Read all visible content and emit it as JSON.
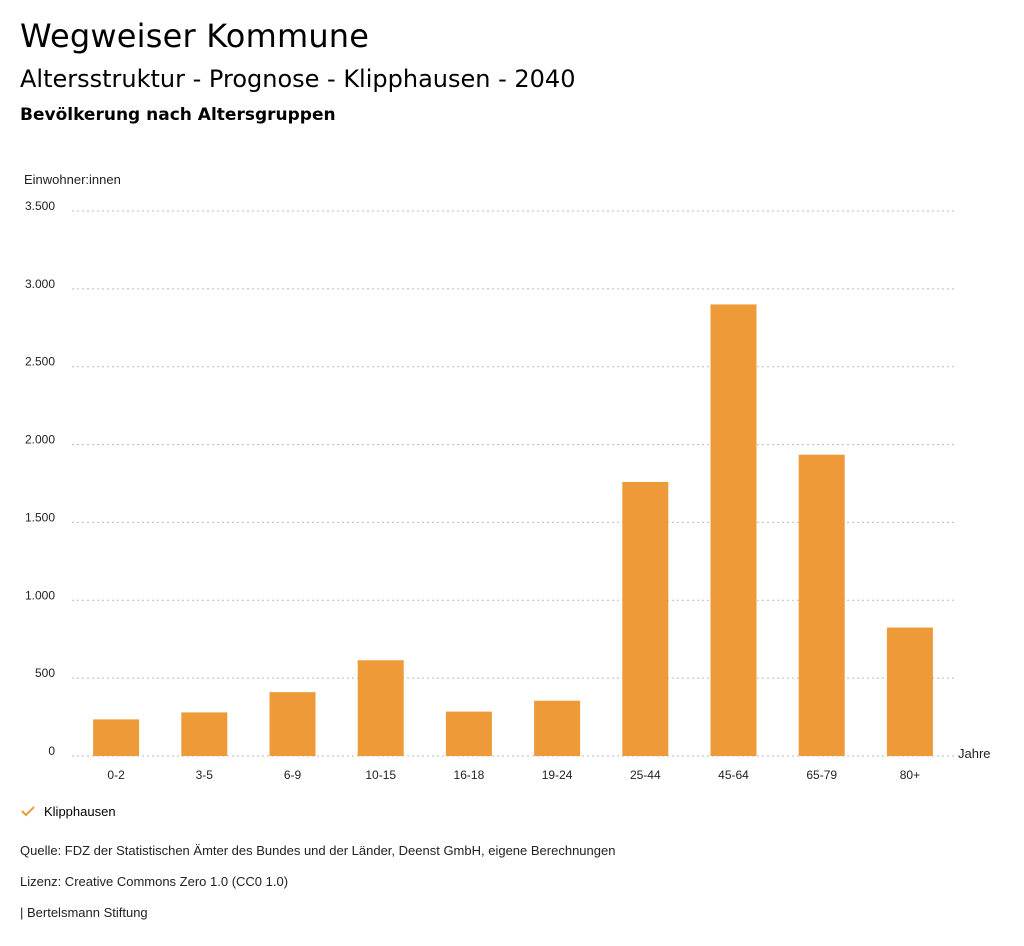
{
  "header": {
    "title": "Wegweiser Kommune",
    "subtitle": "Altersstruktur - Prognose - Klipphausen - 2040",
    "caption": "Bevölkerung nach Altersgruppen"
  },
  "legend": {
    "label": "Klipphausen",
    "icon": "check-icon"
  },
  "footer": {
    "source": "Quelle: FDZ der Statistischen Ämter des Bundes und der Länder, Deenst GmbH, eigene Berechnungen",
    "license": "Lizenz: Creative Commons Zero 1.0 (CC0 1.0)",
    "organization": "| Bertelsmann Stiftung"
  },
  "colors": {
    "bar": "#ee9a38",
    "grid": "#bbbbbb",
    "text": "#222222"
  },
  "chart_data": {
    "type": "bar",
    "title": "Bevölkerung nach Altersgruppen",
    "ylabel": "Einwohner:innen",
    "xlabel": "Jahre",
    "ylim": [
      0,
      3500
    ],
    "yticks": [
      0,
      500,
      1000,
      1500,
      2000,
      2500,
      3000,
      3500
    ],
    "ytick_labels": [
      "0",
      "500",
      "1.000",
      "1.500",
      "2.000",
      "2.500",
      "3.000",
      "3.500"
    ],
    "categories": [
      "0-2",
      "3-5",
      "6-9",
      "10-15",
      "16-18",
      "19-24",
      "25-44",
      "45-64",
      "65-79",
      "80+"
    ],
    "series": [
      {
        "name": "Klipphausen",
        "values": [
          235,
          280,
          410,
          615,
          285,
          355,
          1760,
          2900,
          1935,
          825
        ]
      }
    ],
    "grid": true,
    "legend_position": "bottom-left"
  }
}
